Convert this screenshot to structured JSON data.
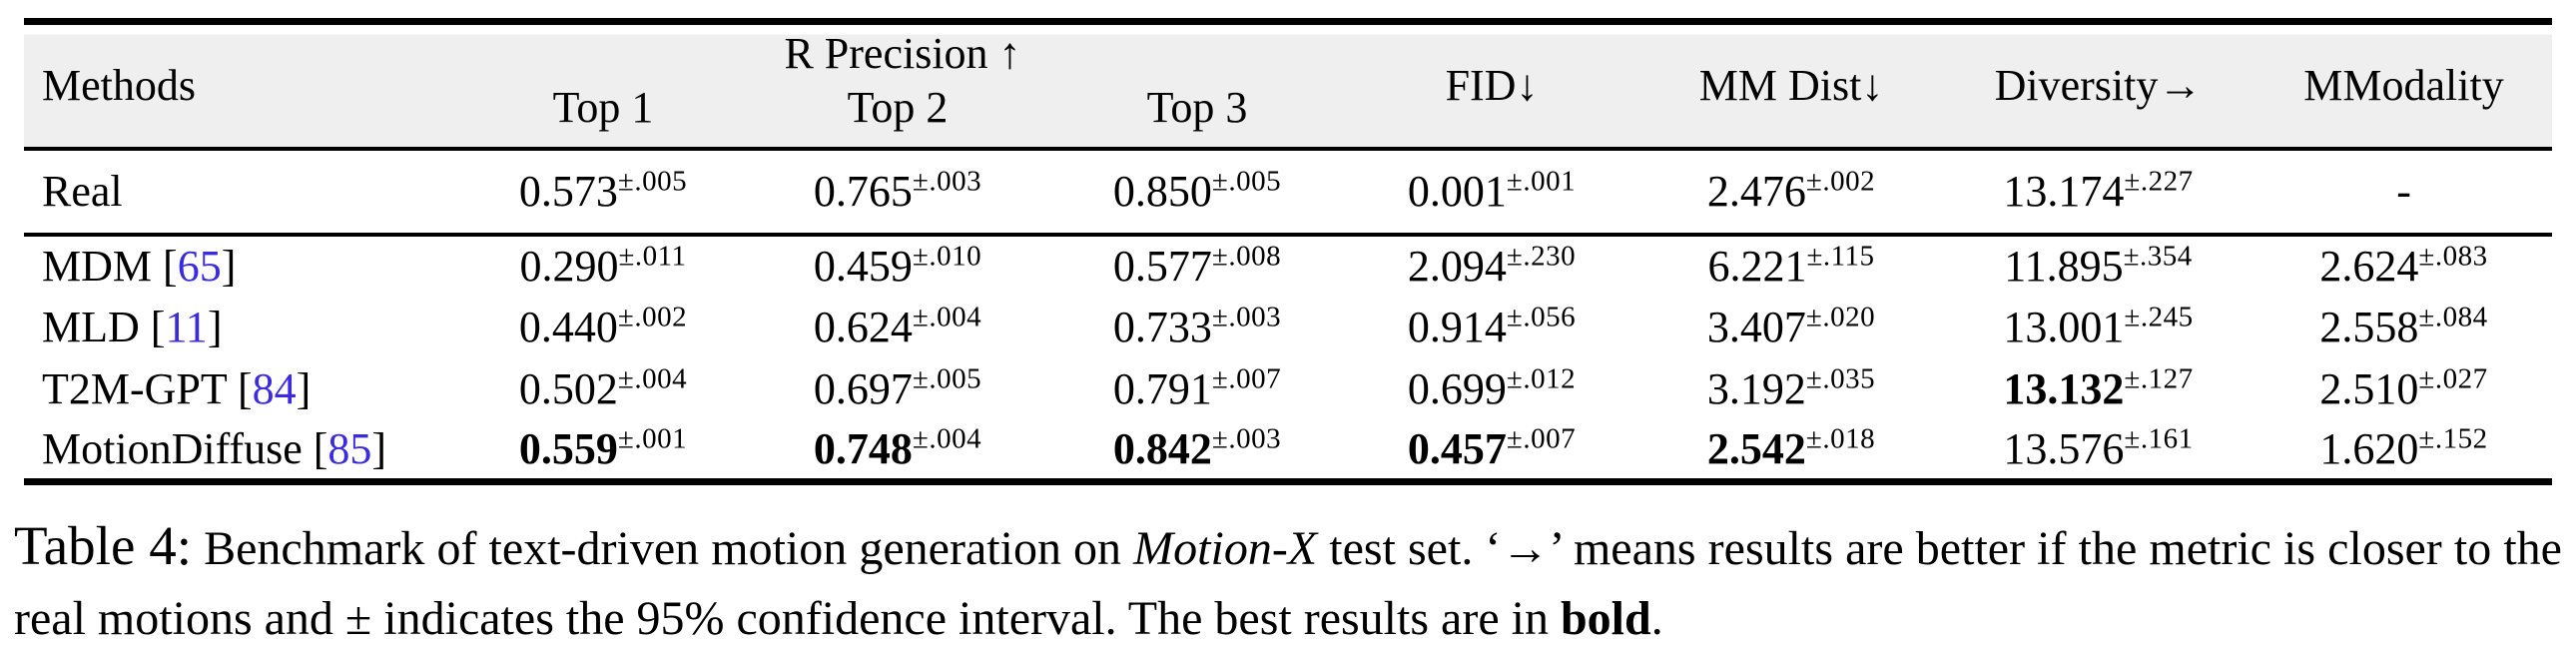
{
  "colors": {
    "citation_blue": "#3b2be0",
    "header_band_gray": "#efefef",
    "rule_black": "#000000"
  },
  "table": {
    "citation_format": {
      "open": " [",
      "close": "]"
    },
    "header": {
      "methods": "Methods",
      "r_precision": "R Precision ↑",
      "top1": "Top 1",
      "top2": "Top 2",
      "top3": "Top 3",
      "fid": "FID↓",
      "mm_dist": "MM Dist↓",
      "diversity": "Diversity→",
      "mmodality": "MModality"
    },
    "rows": [
      {
        "method": "Real",
        "cite": null,
        "real": true,
        "cells": [
          {
            "v": "0.573",
            "sup": "±.005",
            "bold": false
          },
          {
            "v": "0.765",
            "sup": "±.003",
            "bold": false
          },
          {
            "v": "0.850",
            "sup": "±.005",
            "bold": false
          },
          {
            "v": "0.001",
            "sup": "±.001",
            "bold": false
          },
          {
            "v": "2.476",
            "sup": "±.002",
            "bold": false
          },
          {
            "v": "13.174",
            "sup": "±.227",
            "bold": false
          },
          {
            "v": "-",
            "sup": null,
            "bold": false
          }
        ]
      },
      {
        "method": "MDM",
        "cite": "65",
        "real": false,
        "cells": [
          {
            "v": "0.290",
            "sup": "±.011",
            "bold": false
          },
          {
            "v": "0.459",
            "sup": "±.010",
            "bold": false
          },
          {
            "v": "0.577",
            "sup": "±.008",
            "bold": false
          },
          {
            "v": "2.094",
            "sup": "±.230",
            "bold": false
          },
          {
            "v": "6.221",
            "sup": "±.115",
            "bold": false
          },
          {
            "v": "11.895",
            "sup": "±.354",
            "bold": false
          },
          {
            "v": "2.624",
            "sup": "±.083",
            "bold": false
          }
        ]
      },
      {
        "method": "MLD",
        "cite": "11",
        "real": false,
        "cells": [
          {
            "v": "0.440",
            "sup": "±.002",
            "bold": false
          },
          {
            "v": "0.624",
            "sup": "±.004",
            "bold": false
          },
          {
            "v": "0.733",
            "sup": "±.003",
            "bold": false
          },
          {
            "v": "0.914",
            "sup": "±.056",
            "bold": false
          },
          {
            "v": "3.407",
            "sup": "±.020",
            "bold": false
          },
          {
            "v": "13.001",
            "sup": "±.245",
            "bold": false
          },
          {
            "v": "2.558",
            "sup": "±.084",
            "bold": false
          }
        ]
      },
      {
        "method": "T2M-GPT",
        "cite": "84",
        "real": false,
        "cells": [
          {
            "v": "0.502",
            "sup": "±.004",
            "bold": false
          },
          {
            "v": "0.697",
            "sup": "±.005",
            "bold": false
          },
          {
            "v": "0.791",
            "sup": "±.007",
            "bold": false
          },
          {
            "v": "0.699",
            "sup": "±.012",
            "bold": false
          },
          {
            "v": "3.192",
            "sup": "±.035",
            "bold": false
          },
          {
            "v": "13.132",
            "sup": "±.127",
            "bold": true
          },
          {
            "v": "2.510",
            "sup": "±.027",
            "bold": false
          }
        ]
      },
      {
        "method": "MotionDiffuse",
        "cite": "85",
        "real": false,
        "cells": [
          {
            "v": "0.559",
            "sup": "±.001",
            "bold": true
          },
          {
            "v": "0.748",
            "sup": "±.004",
            "bold": true
          },
          {
            "v": "0.842",
            "sup": "±.003",
            "bold": true
          },
          {
            "v": "0.457",
            "sup": "±.007",
            "bold": true
          },
          {
            "v": "2.542",
            "sup": "±.018",
            "bold": true
          },
          {
            "v": "13.576",
            "sup": "±.161",
            "bold": false
          },
          {
            "v": "1.620",
            "sup": "±.152",
            "bold": false
          }
        ]
      }
    ]
  },
  "caption": {
    "label": "Table 4:",
    "before_dataset": " Benchmark of text-driven motion generation on ",
    "dataset_italic": "Motion-X",
    "after_dataset": " test set. ‘→’ means results are better if the metric is closer to the real motions and ± indicates the 95% confidence interval. The best results are in ",
    "bold_word": "bold",
    "period": "."
  }
}
